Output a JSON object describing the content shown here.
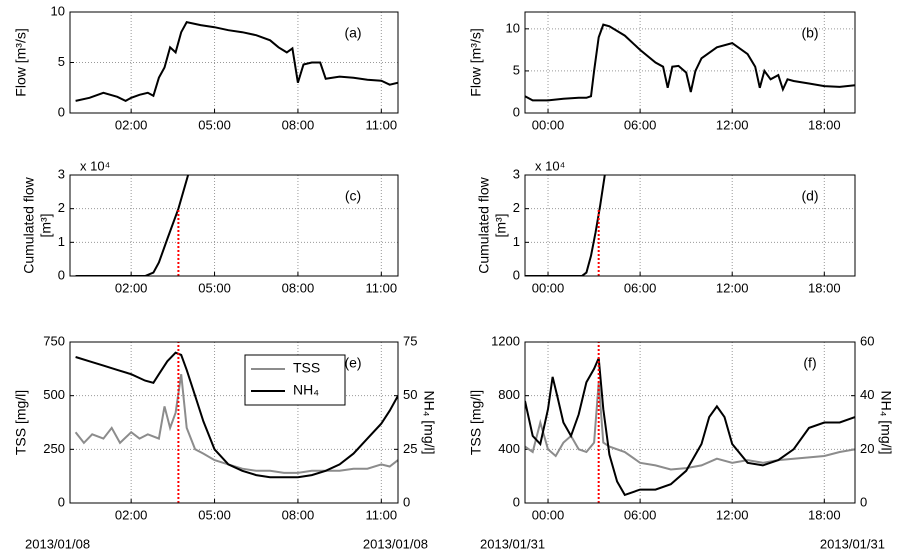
{
  "chart_data": [
    {
      "type": "line",
      "annotation": "(a)",
      "ylabel": "Flow [m³/s]",
      "grid": true,
      "xlim": [
        -0.2,
        11.6
      ],
      "xticks": [
        {
          "value": 2,
          "label": "02:00"
        },
        {
          "value": 5,
          "label": "05:00"
        },
        {
          "value": 8,
          "label": "08:00"
        },
        {
          "value": 11,
          "label": "11:00"
        }
      ],
      "ylim": [
        0,
        10
      ],
      "yticks": [
        0,
        5,
        10
      ],
      "series": [
        {
          "color": "#000000",
          "x": [
            0,
            0.5,
            1,
            1.5,
            1.8,
            2,
            2.3,
            2.6,
            2.8,
            3.0,
            3.2,
            3.4,
            3.6,
            3.8,
            4.0,
            4.5,
            5,
            5.5,
            6,
            6.5,
            7,
            7.3,
            7.6,
            7.8,
            8.0,
            8.2,
            8.5,
            8.8,
            9,
            9.5,
            10,
            10.5,
            11,
            11.3,
            11.6
          ],
          "values": [
            1.2,
            1.5,
            2,
            1.6,
            1.2,
            1.5,
            1.8,
            2,
            1.7,
            3.5,
            4.5,
            6.5,
            6,
            8,
            9,
            8.7,
            8.5,
            8.2,
            8,
            7.7,
            7.2,
            6.5,
            6,
            6.4,
            3,
            4.8,
            5,
            5,
            3.4,
            3.6,
            3.5,
            3.3,
            3.2,
            2.8,
            3
          ]
        }
      ]
    },
    {
      "type": "line",
      "annotation": "(b)",
      "ylabel": "Flow [m³/s]",
      "grid": true,
      "xlim": [
        -1.5,
        20
      ],
      "xticks": [
        {
          "value": 0,
          "label": "00:00"
        },
        {
          "value": 6,
          "label": "06:00"
        },
        {
          "value": 12,
          "label": "12:00"
        },
        {
          "value": 18,
          "label": "18:00"
        }
      ],
      "ylim": [
        0,
        12
      ],
      "yticks": [
        0,
        5,
        10
      ],
      "series": [
        {
          "color": "#000000",
          "x": [
            -1.5,
            -1,
            0,
            1,
            2,
            2.5,
            2.8,
            3,
            3.3,
            3.6,
            4,
            5,
            6,
            7,
            7.5,
            7.8,
            8.1,
            8.5,
            9,
            9.3,
            9.6,
            10,
            11,
            12,
            13,
            13.5,
            13.8,
            14.1,
            14.5,
            15,
            15.3,
            15.6,
            16,
            17,
            18,
            19,
            20
          ],
          "values": [
            2,
            1.5,
            1.5,
            1.7,
            1.8,
            1.8,
            2,
            5,
            9,
            10.5,
            10.3,
            9.2,
            7.5,
            6,
            5.5,
            3,
            5.5,
            5.6,
            4.8,
            2.5,
            5,
            6.5,
            7.8,
            8.3,
            7,
            5.5,
            3,
            5,
            4,
            4.5,
            2.8,
            4,
            3.8,
            3.5,
            3.2,
            3.1,
            3.3
          ]
        }
      ]
    },
    {
      "type": "line",
      "annotation": "(c)",
      "ylabel": [
        "Cumulated flow",
        "[m³]"
      ],
      "multiplier": "x 10⁴",
      "grid": true,
      "xlim": [
        -0.2,
        11.6
      ],
      "xticks": [
        {
          "value": 2,
          "label": "02:00"
        },
        {
          "value": 5,
          "label": "05:00"
        },
        {
          "value": 8,
          "label": "08:00"
        },
        {
          "value": 11,
          "label": "11:00"
        }
      ],
      "ylim": [
        0,
        3
      ],
      "yticks": [
        0,
        1,
        2,
        3
      ],
      "vline": {
        "x": 3.7,
        "ymax": 2,
        "color": "#ff0000"
      },
      "series": [
        {
          "color": "#000000",
          "x": [
            0,
            2.5,
            2.8,
            3.0,
            3.3,
            3.7,
            4.05
          ],
          "values": [
            0,
            0,
            0.1,
            0.4,
            1.1,
            2.0,
            3.0
          ]
        }
      ]
    },
    {
      "type": "line",
      "annotation": "(d)",
      "ylabel": [
        "Cumulated flow",
        "[m³]"
      ],
      "multiplier": "x 10⁴",
      "grid": true,
      "xlim": [
        -1.5,
        20
      ],
      "xticks": [
        {
          "value": 0,
          "label": "00:00"
        },
        {
          "value": 6,
          "label": "06:00"
        },
        {
          "value": 12,
          "label": "12:00"
        },
        {
          "value": 18,
          "label": "18:00"
        }
      ],
      "ylim": [
        0,
        3
      ],
      "yticks": [
        0,
        1,
        2,
        3
      ],
      "vline": {
        "x": 3.3,
        "ymax": 2,
        "color": "#ff0000"
      },
      "series": [
        {
          "color": "#000000",
          "x": [
            -1.5,
            2.2,
            2.5,
            2.8,
            3.1,
            3.4,
            3.7
          ],
          "values": [
            0,
            0,
            0.1,
            0.6,
            1.3,
            2.1,
            3.0
          ]
        }
      ]
    },
    {
      "type": "line",
      "annotation": "(e)",
      "ylabel": "TSS [mg/l]",
      "y2label": "NH₄ [mg/l]",
      "grid": true,
      "legend": "upper center",
      "date_labels": [
        "2013/01/08",
        "2013/01/08"
      ],
      "xlim": [
        -0.2,
        11.6
      ],
      "xticks": [
        {
          "value": 2,
          "label": "02:00"
        },
        {
          "value": 5,
          "label": "05:00"
        },
        {
          "value": 8,
          "label": "08:00"
        },
        {
          "value": 11,
          "label": "11:00"
        }
      ],
      "ylim": [
        0,
        750
      ],
      "yticks": [
        0,
        250,
        500,
        750
      ],
      "y2lim": [
        0,
        75
      ],
      "y2ticks": [
        0,
        25,
        50,
        75
      ],
      "vline": {
        "x": 3.7,
        "color": "#ff0000"
      },
      "series": [
        {
          "name": "TSS",
          "color": "#8c8c8c",
          "x": [
            0,
            0.3,
            0.6,
            1,
            1.3,
            1.6,
            2,
            2.3,
            2.6,
            3,
            3.2,
            3.4,
            3.6,
            3.8,
            4,
            4.3,
            4.6,
            5,
            5.5,
            6,
            6.5,
            7,
            7.5,
            8,
            8.5,
            9,
            9.5,
            10,
            10.5,
            11,
            11.3,
            11.6
          ],
          "values": [
            330,
            280,
            320,
            300,
            350,
            280,
            330,
            300,
            320,
            300,
            450,
            350,
            420,
            600,
            350,
            250,
            230,
            200,
            180,
            160,
            150,
            150,
            140,
            140,
            150,
            150,
            150,
            160,
            160,
            180,
            170,
            200
          ]
        },
        {
          "name": "NH₄",
          "color": "#000000",
          "axis": "y2",
          "x": [
            0,
            0.5,
            1,
            1.5,
            2,
            2.5,
            2.8,
            3,
            3.3,
            3.6,
            3.8,
            4,
            4.3,
            4.6,
            5,
            5.5,
            6,
            6.5,
            7,
            7.5,
            8,
            8.5,
            9,
            9.5,
            10,
            10.5,
            11,
            11.3,
            11.6
          ],
          "values": [
            68,
            66,
            64,
            62,
            60,
            57,
            56,
            60,
            66,
            70,
            69,
            62,
            50,
            38,
            25,
            18,
            15,
            13,
            12,
            12,
            12,
            13,
            15,
            18,
            23,
            30,
            37,
            43,
            50
          ]
        }
      ]
    },
    {
      "type": "line",
      "annotation": "(f)",
      "ylabel": "TSS [mg/l]",
      "y2label": "NH₄ [mg/l]",
      "grid": true,
      "date_labels": [
        "2013/01/31",
        "2013/01/31"
      ],
      "xlim": [
        -1.5,
        20
      ],
      "xticks": [
        {
          "value": 0,
          "label": "00:00"
        },
        {
          "value": 6,
          "label": "06:00"
        },
        {
          "value": 12,
          "label": "12:00"
        },
        {
          "value": 18,
          "label": "18:00"
        }
      ],
      "ylim": [
        0,
        1200
      ],
      "yticks": [
        0,
        400,
        800,
        1200
      ],
      "y2lim": [
        0,
        60
      ],
      "y2ticks": [
        0,
        20,
        40,
        60
      ],
      "vline": {
        "x": 3.3,
        "color": "#ff0000"
      },
      "series": [
        {
          "color": "#8c8c8c",
          "x": [
            -1.5,
            -1,
            -0.5,
            0,
            0.5,
            1,
            1.5,
            2,
            2.5,
            3,
            3.3,
            3.6,
            4,
            5,
            6,
            7,
            8,
            9,
            10,
            11,
            12,
            13,
            14,
            15,
            16,
            17,
            18,
            19,
            20
          ],
          "values": [
            420,
            380,
            600,
            400,
            350,
            450,
            500,
            400,
            380,
            450,
            900,
            450,
            420,
            380,
            300,
            280,
            250,
            260,
            280,
            330,
            300,
            320,
            300,
            320,
            330,
            340,
            350,
            380,
            400
          ]
        },
        {
          "color": "#000000",
          "axis": "y2",
          "x": [
            -1.5,
            -1,
            -0.5,
            0,
            0.3,
            0.6,
            1,
            1.5,
            2,
            2.5,
            3,
            3.3,
            3.6,
            4,
            4.5,
            5,
            6,
            7,
            8,
            9,
            10,
            10.5,
            11,
            11.5,
            12,
            13,
            14,
            15,
            16,
            17,
            18,
            19,
            20
          ],
          "values": [
            38,
            25,
            22,
            35,
            47,
            40,
            30,
            25,
            33,
            45,
            50,
            54,
            35,
            18,
            8,
            3,
            5,
            5,
            7,
            12,
            22,
            32,
            36,
            32,
            22,
            15,
            14,
            16,
            20,
            28,
            30,
            30,
            32
          ]
        }
      ]
    }
  ]
}
